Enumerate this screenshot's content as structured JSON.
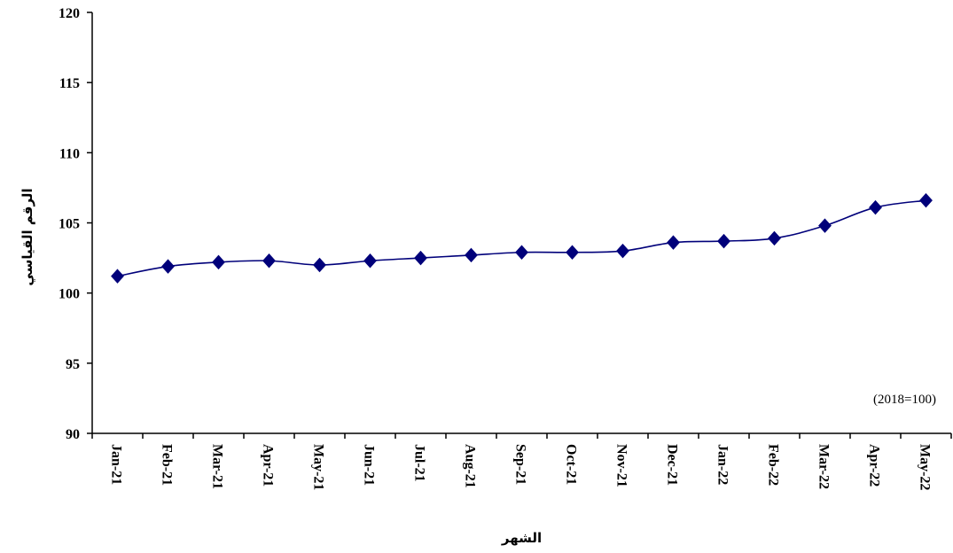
{
  "chart_data": {
    "type": "line",
    "title": "",
    "xlabel": "الشهر",
    "ylabel": "الرقم القياسي",
    "annotation": "(2018=100)",
    "categories": [
      "Jan-21",
      "Feb-21",
      "Mar-21",
      "Apr-21",
      "May-21",
      "Jun-21",
      "Jul-21",
      "Aug-21",
      "Sep-21",
      "Oct-21",
      "Nov-21",
      "Dec-21",
      "Jan-22",
      "Feb-22",
      "Mar-22",
      "Apr-22",
      "May-22"
    ],
    "series": [
      {
        "values": [
          101.2,
          101.9,
          102.2,
          102.3,
          102.0,
          102.3,
          102.5,
          102.7,
          102.9,
          102.9,
          103.0,
          103.6,
          103.7,
          103.9,
          104.8,
          106.1,
          106.6
        ],
        "color": "#00007a",
        "marker": "diamond"
      }
    ],
    "ylim": [
      90,
      120
    ],
    "yticks": [
      90,
      95,
      100,
      105,
      110,
      115,
      120
    ],
    "grid": false,
    "legend": "none"
  }
}
